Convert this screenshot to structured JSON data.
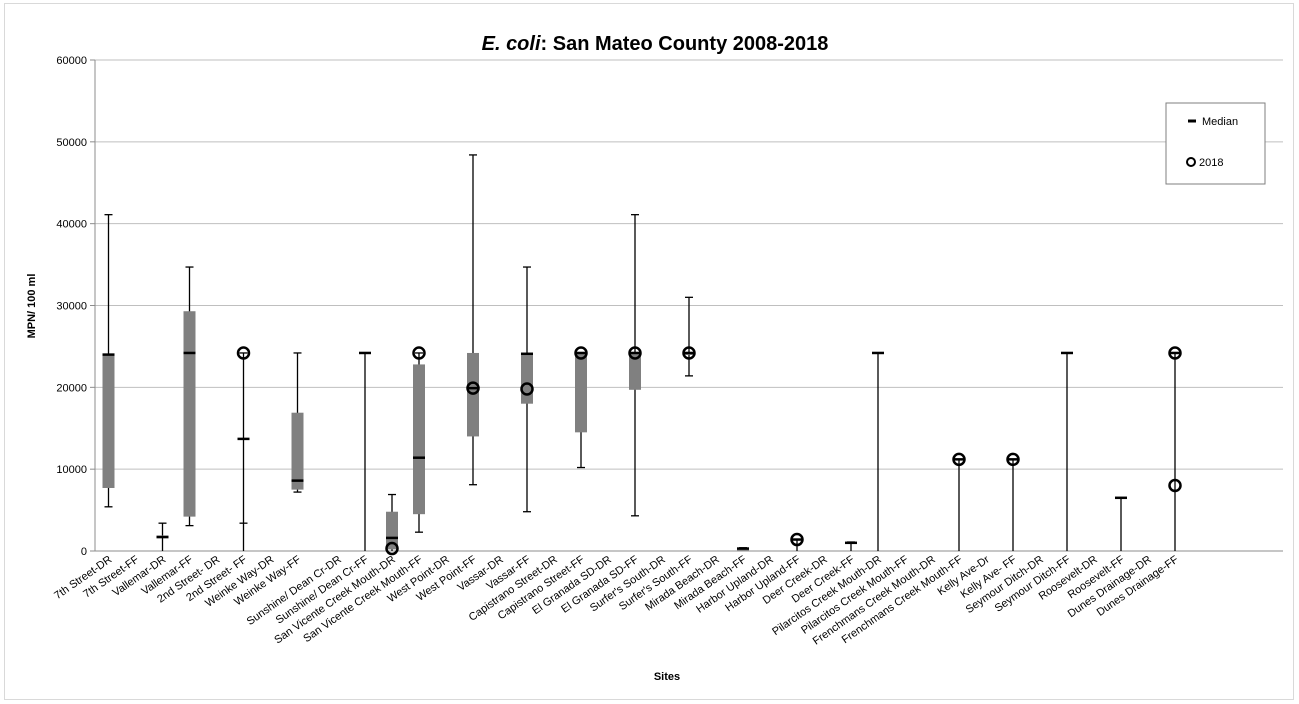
{
  "chart_data": {
    "type": "box",
    "title_italic": "E. coli",
    "title_rest": ": San Mateo County 2008-2018",
    "xlabel": "Sites",
    "ylabel": "MPN/ 100 ml",
    "ylim": [
      0,
      60000
    ],
    "y_ticks": [
      0,
      10000,
      20000,
      30000,
      40000,
      50000,
      60000
    ],
    "grid": true,
    "legend_position": "top-right",
    "legend": {
      "median_label": "Median",
      "marker_label": "2018"
    },
    "colors": {
      "box": "#808080",
      "whisker": "#000000",
      "grid": "#bfbfbf"
    },
    "sites": [
      {
        "name": "7th Street-DR",
        "min": 5400,
        "q1": 7700,
        "median": 24000,
        "q3": 24100,
        "max": 41100,
        "y2018": null
      },
      {
        "name": "7th Street-FF",
        "min": null,
        "q1": null,
        "median": null,
        "q3": null,
        "max": null,
        "y2018": null
      },
      {
        "name": "Vallemar-DR",
        "min": 0,
        "q1": 1700,
        "median": 1700,
        "q3": 1900,
        "max": 3400,
        "y2018": null
      },
      {
        "name": "Vallemar-FF",
        "min": 3100,
        "q1": 4200,
        "median": 24200,
        "q3": 29300,
        "max": 34700,
        "y2018": null
      },
      {
        "name": "2nd Street- DR",
        "min": null,
        "q1": null,
        "median": null,
        "q3": null,
        "max": null,
        "y2018": null
      },
      {
        "name": "2nd Street- FF",
        "min": 0,
        "q1": null,
        "median": 13700,
        "q3": null,
        "max": 24200,
        "y2018": 24200,
        "mid": 3400
      },
      {
        "name": "Weinke Way-DR",
        "min": null,
        "q1": null,
        "median": null,
        "q3": null,
        "max": null,
        "y2018": null
      },
      {
        "name": "Weinke Way-FF",
        "min": 7200,
        "q1": 7500,
        "median": 8600,
        "q3": 16900,
        "max": 24200,
        "y2018": null
      },
      {
        "name": "Sunshine/ Dean Cr-DR",
        "min": null,
        "q1": null,
        "median": null,
        "q3": null,
        "max": null,
        "y2018": null
      },
      {
        "name": "Sunshine/ Dean Cr-FF",
        "min": 0,
        "q1": null,
        "median": 24200,
        "q3": null,
        "max": 24200,
        "y2018": null
      },
      {
        "name": "San Vicente Creek Mouth-DR",
        "min": 0,
        "q1": 200,
        "median": 1600,
        "q3": 4800,
        "max": 6900,
        "y2018": 300
      },
      {
        "name": "San Vicente Creek Mouth-FF",
        "min": 2300,
        "q1": 4500,
        "median": 11400,
        "q3": 22800,
        "max": 24200,
        "y2018": 24200
      },
      {
        "name": "West Point-DR",
        "min": null,
        "q1": null,
        "median": null,
        "q3": null,
        "max": null,
        "y2018": null
      },
      {
        "name": "West Point-FF",
        "min": 8100,
        "q1": 14000,
        "median": 19900,
        "q3": 24200,
        "max": 48400,
        "y2018": 19900
      },
      {
        "name": "Vassar-DR",
        "min": null,
        "q1": null,
        "median": null,
        "q3": null,
        "max": null,
        "y2018": null
      },
      {
        "name": "Vassar-FF",
        "min": 4800,
        "q1": 18000,
        "median": 24100,
        "q3": 24200,
        "max": 34700,
        "y2018": 19800
      },
      {
        "name": "Capistrano Street-DR",
        "min": null,
        "q1": null,
        "median": null,
        "q3": null,
        "max": null,
        "y2018": null
      },
      {
        "name": "Capistrano Street-FF",
        "min": 10200,
        "q1": 14500,
        "median": 24200,
        "q3": 24200,
        "max": 24200,
        "y2018": 24200
      },
      {
        "name": "El Granada SD-DR",
        "min": null,
        "q1": null,
        "median": null,
        "q3": null,
        "max": null,
        "y2018": null
      },
      {
        "name": "El Granada SD-FF",
        "min": 4300,
        "q1": 19700,
        "median": 24200,
        "q3": 24200,
        "max": 41100,
        "y2018": 24200
      },
      {
        "name": "Surfer's South-DR",
        "min": null,
        "q1": null,
        "median": null,
        "q3": null,
        "max": null,
        "y2018": null
      },
      {
        "name": "Surfer's South-FF",
        "min": 21400,
        "q1": 24200,
        "median": 24200,
        "q3": 24200,
        "max": 31000,
        "y2018": 24200
      },
      {
        "name": "Mirada Beach-DR",
        "min": null,
        "q1": null,
        "median": null,
        "q3": null,
        "max": null,
        "y2018": null
      },
      {
        "name": "Mirada Beach-FF",
        "min": 200,
        "q1": 300,
        "median": 300,
        "q3": 300,
        "max": 400,
        "y2018": null
      },
      {
        "name": "Harbor Upland-DR",
        "min": null,
        "q1": null,
        "median": null,
        "q3": null,
        "max": null,
        "y2018": null
      },
      {
        "name": "Harbor Upland-FF",
        "min": 0,
        "q1": null,
        "median": 1400,
        "q3": null,
        "max": 1400,
        "y2018": 1400
      },
      {
        "name": "Deer Creek-DR",
        "min": null,
        "q1": null,
        "median": null,
        "q3": null,
        "max": null,
        "y2018": null
      },
      {
        "name": "Deer Creek-FF",
        "min": 0,
        "q1": null,
        "median": 1000,
        "q3": null,
        "max": 1100,
        "y2018": null
      },
      {
        "name": "Pilarcitos Creek Mouth-DR",
        "min": 0,
        "q1": null,
        "median": 24200,
        "q3": null,
        "max": 24200,
        "y2018": null
      },
      {
        "name": "Pilarcitos Creek Mouth-FF",
        "min": null,
        "q1": null,
        "median": null,
        "q3": null,
        "max": null,
        "y2018": null
      },
      {
        "name": "Frenchmans Creek Mouth-DR",
        "min": null,
        "q1": null,
        "median": null,
        "q3": null,
        "max": null,
        "y2018": null
      },
      {
        "name": "Frenchmans Creek Mouth-FF",
        "min": 0,
        "q1": null,
        "median": 11200,
        "q3": null,
        "max": 11200,
        "y2018": 11200
      },
      {
        "name": "Kelly Ave-Dr",
        "min": null,
        "q1": null,
        "median": null,
        "q3": null,
        "max": null,
        "y2018": null
      },
      {
        "name": "Kelly Ave- FF",
        "min": 0,
        "q1": null,
        "median": 11200,
        "q3": null,
        "max": 11200,
        "y2018": 11200
      },
      {
        "name": "Seymour Ditch-DR",
        "min": null,
        "q1": null,
        "median": null,
        "q3": null,
        "max": null,
        "y2018": null
      },
      {
        "name": "Seymour Ditch-FF",
        "min": 0,
        "q1": null,
        "median": 24200,
        "q3": null,
        "max": 24200,
        "y2018": null
      },
      {
        "name": "Roosevelt-DR",
        "min": null,
        "q1": null,
        "median": null,
        "q3": null,
        "max": null,
        "y2018": null
      },
      {
        "name": "Roosevelt-FF",
        "min": 0,
        "q1": null,
        "median": 6500,
        "q3": null,
        "max": 6500,
        "y2018": null
      },
      {
        "name": "Dunes Drainage-DR",
        "min": null,
        "q1": null,
        "median": null,
        "q3": null,
        "max": null,
        "y2018": null
      },
      {
        "name": "Dunes Drainage-FF",
        "min": 0,
        "q1": null,
        "median": 24200,
        "q3": null,
        "max": 24200,
        "y2018": 24200
      }
    ],
    "extra_markers": [
      {
        "site": "Dunes Drainage-FF",
        "value": 8000
      }
    ]
  }
}
